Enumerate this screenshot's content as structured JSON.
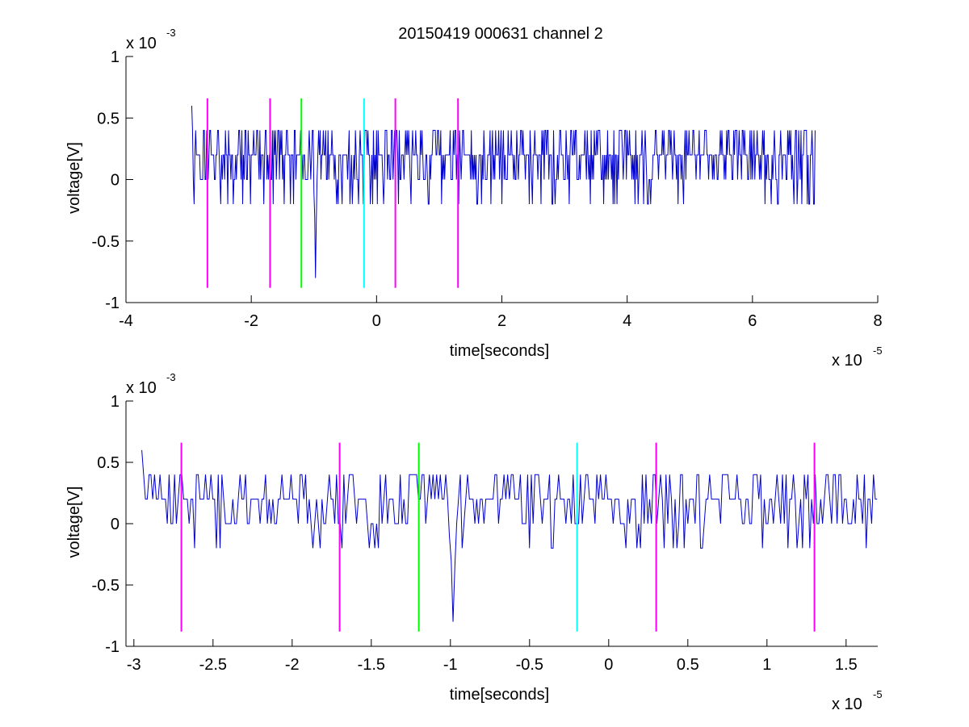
{
  "figure_title": "20150419 000631 channel 2",
  "colors": {
    "signal": "#0000cc",
    "marker_magenta": "#ff00ff",
    "marker_green": "#00ff00",
    "marker_cyan": "#00ffff",
    "axes": "#000000"
  },
  "chart_data": [
    {
      "type": "line",
      "title": "20150419 000631 channel 2",
      "xlabel": "time[seconds]",
      "ylabel": "voltage[V]",
      "x_multiplier": "x 10",
      "x_exponent": "-5",
      "y_multiplier": "x 10",
      "y_exponent": "-3",
      "xlim": [
        -4,
        8
      ],
      "ylim": [
        -1,
        1
      ],
      "x_ticks": [
        -4,
        -2,
        0,
        2,
        4,
        6,
        8
      ],
      "x_tick_labels": [
        "-4",
        "-2",
        "0",
        "2",
        "4",
        "6",
        "8"
      ],
      "y_ticks": [
        -1,
        -0.5,
        0,
        0.5,
        1
      ],
      "y_tick_labels": [
        "-1",
        "-0.5",
        "0",
        "0.5",
        "1"
      ],
      "grid": false,
      "signal": {
        "x_start": -2.95,
        "x_end": 7.0,
        "baseline_levels": [
          0,
          0.2,
          0.4
        ],
        "min": -0.8,
        "min_at": -0.98,
        "max": 0.6
      },
      "markers": [
        {
          "x": -2.7,
          "color": "#ff00ff",
          "y_from": -0.88,
          "y_to": 0.66
        },
        {
          "x": -1.7,
          "color": "#ff00ff",
          "y_from": -0.88,
          "y_to": 0.66
        },
        {
          "x": -1.2,
          "color": "#00ff00",
          "y_from": -0.88,
          "y_to": 0.66
        },
        {
          "x": -0.2,
          "color": "#00ffff",
          "y_from": -0.88,
          "y_to": 0.66
        },
        {
          "x": 0.3,
          "color": "#ff00ff",
          "y_from": -0.88,
          "y_to": 0.66
        },
        {
          "x": 1.3,
          "color": "#ff00ff",
          "y_from": -0.88,
          "y_to": 0.66
        }
      ]
    },
    {
      "type": "line",
      "title": "",
      "xlabel": "time[seconds]",
      "ylabel": "voltage[V]",
      "x_multiplier": "x 10",
      "x_exponent": "-5",
      "y_multiplier": "x 10",
      "y_exponent": "-3",
      "xlim": [
        -3.05,
        1.7
      ],
      "ylim": [
        -1,
        1
      ],
      "x_ticks": [
        -3,
        -2.5,
        -2,
        -1.5,
        -1,
        -0.5,
        0,
        0.5,
        1,
        1.5
      ],
      "x_tick_labels": [
        "-3",
        "-2.5",
        "-2",
        "-1.5",
        "-1",
        "-0.5",
        "0",
        "0.5",
        "1",
        "1.5"
      ],
      "y_ticks": [
        -1,
        -0.5,
        0,
        0.5,
        1
      ],
      "y_tick_labels": [
        "-1",
        "-0.5",
        "0",
        "0.5",
        "1"
      ],
      "grid": false,
      "signal": {
        "x_start": -2.95,
        "x_end": 1.7,
        "baseline_levels": [
          0,
          0.2,
          0.4
        ],
        "min": -0.8,
        "min_at": -0.98,
        "max": 0.6
      },
      "markers": [
        {
          "x": -2.7,
          "color": "#ff00ff",
          "y_from": -0.88,
          "y_to": 0.66
        },
        {
          "x": -1.7,
          "color": "#ff00ff",
          "y_from": -0.88,
          "y_to": 0.66
        },
        {
          "x": -1.2,
          "color": "#00ff00",
          "y_from": -0.88,
          "y_to": 0.66
        },
        {
          "x": -0.2,
          "color": "#00ffff",
          "y_from": -0.88,
          "y_to": 0.66
        },
        {
          "x": 0.3,
          "color": "#ff00ff",
          "y_from": -0.88,
          "y_to": 0.66
        },
        {
          "x": 1.3,
          "color": "#ff00ff",
          "y_from": -0.88,
          "y_to": 0.66
        }
      ]
    }
  ]
}
